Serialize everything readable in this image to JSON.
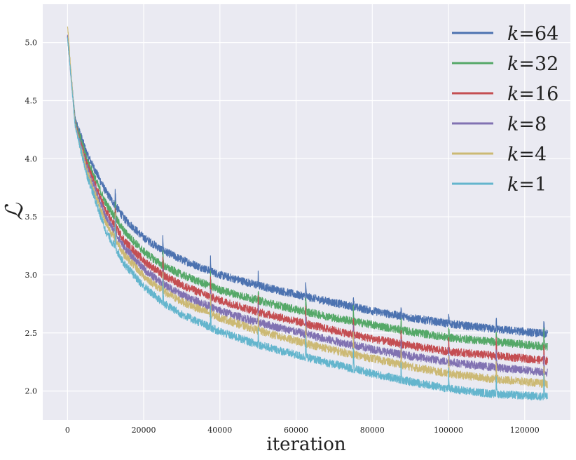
{
  "chart_data": {
    "type": "line",
    "title": "",
    "xlabel": "iteration",
    "ylabel": "ℒ",
    "xlim": [
      -6500,
      132000
    ],
    "ylim": [
      1.75,
      5.33
    ],
    "xticks": [
      0,
      20000,
      40000,
      60000,
      80000,
      100000,
      120000
    ],
    "xtick_labels": [
      "0",
      "20000",
      "40000",
      "60000",
      "80000",
      "100000",
      "120000"
    ],
    "yticks": [
      2.0,
      2.5,
      3.0,
      3.5,
      4.0,
      4.5,
      5.0
    ],
    "ytick_labels": [
      "2.0",
      "2.5",
      "3.0",
      "3.5",
      "4.0",
      "4.5",
      "5.0"
    ],
    "grid": true,
    "legend_position": "top-right",
    "x": [
      0,
      2000,
      5000,
      10000,
      15000,
      20000,
      25000,
      30000,
      40000,
      50000,
      60000,
      70000,
      80000,
      90000,
      100000,
      110000,
      120000,
      126000
    ],
    "series": [
      {
        "name": "k",
        "label_suffix": "=64",
        "color": "#4c72b0",
        "values": [
          5.05,
          4.35,
          4.05,
          3.72,
          3.48,
          3.32,
          3.21,
          3.13,
          3.0,
          2.91,
          2.83,
          2.76,
          2.69,
          2.63,
          2.58,
          2.54,
          2.51,
          2.49
        ]
      },
      {
        "name": "k",
        "label_suffix": "=32",
        "color": "#55a868",
        "values": [
          5.05,
          4.33,
          4.0,
          3.62,
          3.37,
          3.2,
          3.08,
          3.0,
          2.87,
          2.78,
          2.7,
          2.63,
          2.57,
          2.51,
          2.46,
          2.43,
          2.4,
          2.38
        ]
      },
      {
        "name": "k",
        "label_suffix": "=16",
        "color": "#c44e52",
        "values": [
          5.05,
          4.31,
          3.96,
          3.55,
          3.29,
          3.12,
          3.0,
          2.91,
          2.78,
          2.68,
          2.6,
          2.52,
          2.45,
          2.39,
          2.34,
          2.31,
          2.28,
          2.26
        ]
      },
      {
        "name": "k",
        "label_suffix": "=8",
        "color": "#8172b2",
        "values": [
          5.05,
          4.3,
          3.93,
          3.5,
          3.23,
          3.05,
          2.92,
          2.83,
          2.69,
          2.59,
          2.51,
          2.43,
          2.36,
          2.3,
          2.25,
          2.21,
          2.18,
          2.16
        ]
      },
      {
        "name": "k",
        "label_suffix": "=4",
        "color": "#ccb974",
        "values": [
          5.15,
          4.29,
          3.9,
          3.45,
          3.17,
          2.99,
          2.86,
          2.77,
          2.63,
          2.52,
          2.43,
          2.35,
          2.28,
          2.21,
          2.15,
          2.11,
          2.08,
          2.06
        ]
      },
      {
        "name": "k",
        "label_suffix": "=1",
        "color": "#64b5cd",
        "values": [
          5.05,
          4.28,
          3.87,
          3.38,
          3.09,
          2.9,
          2.76,
          2.66,
          2.51,
          2.4,
          2.31,
          2.23,
          2.15,
          2.08,
          2.02,
          1.98,
          1.96,
          1.95
        ]
      }
    ],
    "spike_x": [
      12500,
      25000,
      37500,
      50000,
      62500,
      75000,
      87500,
      100000,
      112500,
      125000
    ],
    "spike_heights": [
      0.25,
      0.22,
      0.22,
      0.2,
      0.2,
      0.2,
      0.18,
      0.18,
      0.18,
      0.22
    ]
  }
}
